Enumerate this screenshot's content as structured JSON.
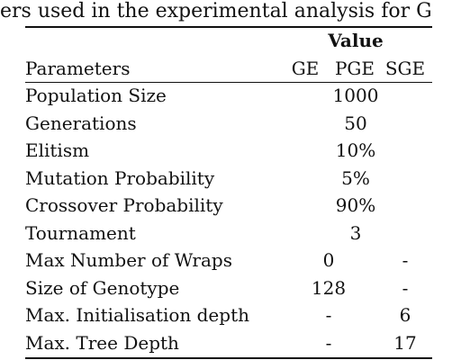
{
  "caption": "ers used in the experimental analysis for G",
  "table": {
    "header_group": "Value",
    "header_param": "Parameters",
    "header_ge": "GE",
    "header_pge": "PGE",
    "header_sge": "SGE",
    "rows": [
      {
        "param": "Population Size",
        "all": "1000"
      },
      {
        "param": "Generations",
        "all": "50"
      },
      {
        "param": "Elitism",
        "all": "10%"
      },
      {
        "param": "Mutation Probability",
        "all": "5%"
      },
      {
        "param": "Crossover Probability",
        "all": "90%"
      },
      {
        "param": "Tournament",
        "all": "3"
      },
      {
        "param": "Max Number of Wraps",
        "ge_pge": "0",
        "sge": "-"
      },
      {
        "param": "Size of Genotype",
        "ge_pge": "128",
        "sge": "-"
      },
      {
        "param": "Max. Initialisation depth",
        "ge_pge": "-",
        "sge": "6"
      },
      {
        "param": "Max. Tree Depth",
        "ge_pge": "-",
        "sge": "17"
      }
    ]
  }
}
